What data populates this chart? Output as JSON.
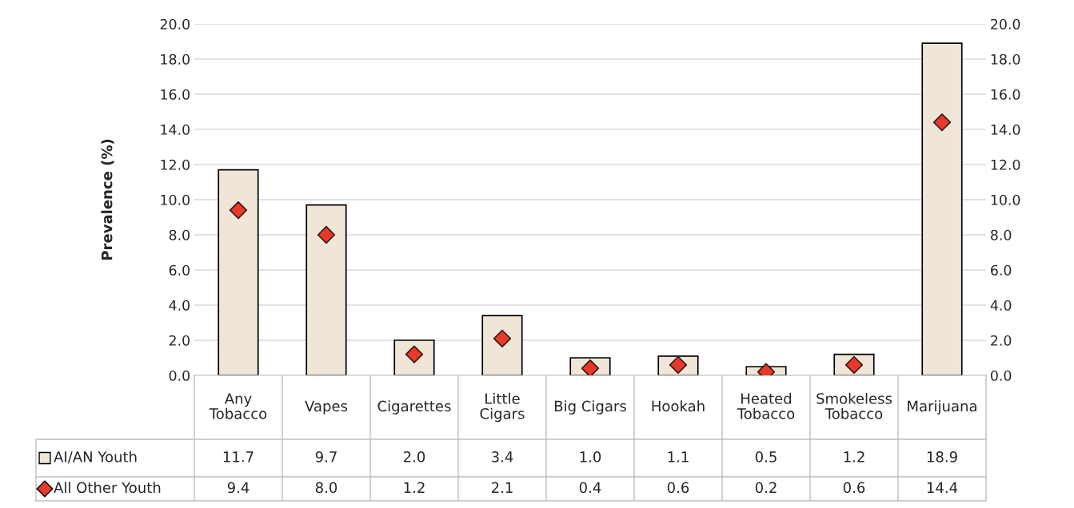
{
  "chart_data": {
    "type": "bar",
    "ylabel": "Prevalence (%)",
    "categories": [
      "Any Tobacco",
      "Vapes",
      "Cigarettes",
      "Little Cigars",
      "Big Cigars",
      "Hookah",
      "Heated Tobacco",
      "Smokeless Tobacco",
      "Marijuana"
    ],
    "series": [
      {
        "name": "AI/AN Youth",
        "color": "#efe6d8",
        "values": [
          11.7,
          9.7,
          2.0,
          3.4,
          1.0,
          1.1,
          0.5,
          1.2,
          18.9
        ],
        "value_labels": [
          "11.7",
          "9.7",
          "2.0",
          "3.4",
          "1.0",
          "1.1",
          "0.5",
          "1.2",
          "18.9"
        ]
      },
      {
        "name": "All Other Youth",
        "type": "scatter",
        "marker": "diamond",
        "color": "#e8392a",
        "values": [
          9.4,
          8.0,
          1.2,
          2.1,
          0.4,
          0.6,
          0.2,
          0.6,
          14.4
        ],
        "value_labels": [
          "9.4",
          "8.0",
          "1.2",
          "2.1",
          "0.4",
          "0.6",
          "0.2",
          "0.6",
          "14.4"
        ]
      }
    ],
    "ylim": [
      0,
      20
    ],
    "yticks": [
      {
        "value": 0,
        "label": "0.0"
      },
      {
        "value": 2,
        "label": "2.0"
      },
      {
        "value": 4,
        "label": "4.0"
      },
      {
        "value": 6,
        "label": "6.0"
      },
      {
        "value": 8,
        "label": "8.0"
      },
      {
        "value": 10,
        "label": "10.0"
      },
      {
        "value": 12,
        "label": "12.0"
      },
      {
        "value": 14,
        "label": "14.0"
      },
      {
        "value": 16,
        "label": "16.0"
      },
      {
        "value": 18,
        "label": "18.0"
      },
      {
        "value": 20,
        "label": "20.0"
      }
    ],
    "y2lim": [
      0,
      20
    ],
    "y2ticks": [
      {
        "value": 0,
        "label": "0.0"
      },
      {
        "value": 2,
        "label": "2.0"
      },
      {
        "value": 4,
        "label": "4.0"
      },
      {
        "value": 6,
        "label": "6.0"
      },
      {
        "value": 8,
        "label": "8.0"
      },
      {
        "value": 10,
        "label": "10.0"
      },
      {
        "value": 12,
        "label": "12.0"
      },
      {
        "value": 14,
        "label": "14.0"
      },
      {
        "value": 16,
        "label": "16.0"
      },
      {
        "value": 18,
        "label": "18.0"
      },
      {
        "value": 20,
        "label": "20.0"
      }
    ],
    "grid": "y",
    "legend": "bottom"
  }
}
